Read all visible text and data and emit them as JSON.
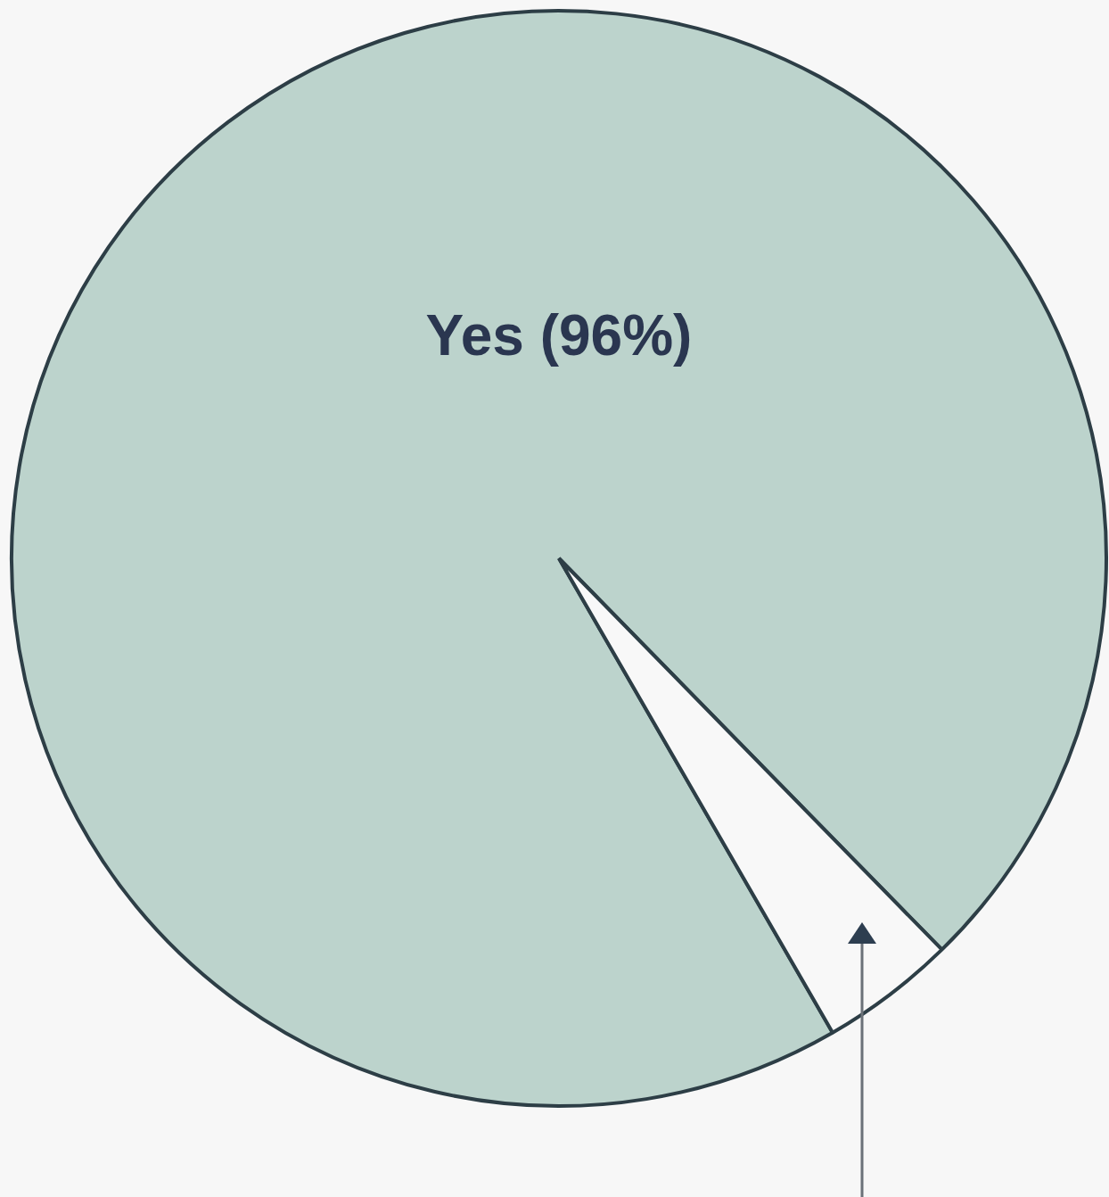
{
  "chart_data": {
    "type": "pie",
    "categories": [
      "Yes (96%)",
      null
    ],
    "values": [
      96,
      4
    ],
    "colors": [
      "#bcd3cc",
      "#f8f8f8"
    ]
  }
}
